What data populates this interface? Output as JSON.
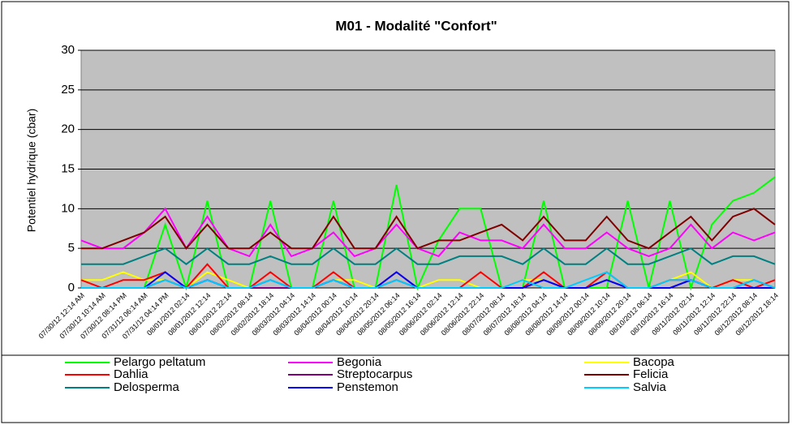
{
  "chart_data": {
    "type": "line",
    "title": "M01 - Modalité \"Confort\"",
    "y_label": "Potentiel hydrique (cbar)",
    "categories": [
      "07/30/12 12:14 AM",
      "07/30/12 10:14 AM",
      "07/30/12 08:14 PM",
      "07/31/12 06:14 AM",
      "07/31/12 04:14 PM",
      "08/01/2012 02:14",
      "08/01/2012 12:14",
      "08/01/2012 22:14",
      "08/02/2012 08:14",
      "08/02/2012 18:14",
      "08/03/2012 04:14",
      "08/03/2012 14:14",
      "08/04/2012 00:14",
      "08/04/2012 10:14",
      "08/04/2012 20:14",
      "08/05/2012 06:14",
      "08/05/2012 16:14",
      "08/06/2012 02:14",
      "08/06/2012 12:14",
      "08/06/2012 22:14",
      "08/07/2012 08:14",
      "08/07/2012 18:14",
      "08/08/2012 04:14",
      "08/08/2012 14:14",
      "08/09/2012 00:14",
      "08/09/2012 10:14",
      "08/09/2012 20:14",
      "08/10/2012 06:14",
      "08/10/2012 16:14",
      "08/11/2012 02:14",
      "08/11/2012 12:14",
      "08/11/2012 22:14",
      "08/12/2012 08:14",
      "08/12/2012 18:14"
    ],
    "series": [
      {
        "name": "Pelargo peltatum",
        "color": "#00ff00",
        "values": [
          0,
          0,
          0,
          0,
          8,
          0,
          11,
          0,
          0,
          11,
          0,
          0,
          11,
          0,
          0,
          13,
          0,
          6,
          10,
          10,
          0,
          0,
          11,
          0,
          0,
          0,
          11,
          0,
          11,
          0,
          8,
          11,
          12,
          14
        ]
      },
      {
        "name": "Begonia",
        "color": "#ff00ff",
        "values": [
          6,
          5,
          5,
          7,
          10,
          5,
          9,
          5,
          4,
          8,
          4,
          5,
          7,
          4,
          5,
          8,
          5,
          4,
          7,
          6,
          6,
          5,
          8,
          5,
          5,
          7,
          5,
          4,
          5,
          8,
          5,
          7,
          6,
          7
        ]
      },
      {
        "name": "Bacopa",
        "color": "#ffff00",
        "values": [
          1,
          1,
          2,
          1,
          1,
          0,
          2,
          1,
          0,
          1,
          0,
          0,
          1,
          1,
          0,
          2,
          0,
          1,
          1,
          0,
          0,
          1,
          1,
          0,
          0,
          1,
          0,
          0,
          1,
          2,
          0,
          1,
          1,
          0
        ]
      },
      {
        "name": "Dahlia",
        "color": "#ff0000",
        "values": [
          1,
          0,
          1,
          1,
          2,
          0,
          3,
          0,
          0,
          2,
          0,
          0,
          2,
          0,
          0,
          2,
          0,
          0,
          0,
          2,
          0,
          0,
          2,
          0,
          0,
          2,
          0,
          0,
          1,
          1,
          0,
          1,
          0,
          1
        ]
      },
      {
        "name": "Streptocarpus",
        "color": "#800080",
        "values": [
          0,
          0,
          0,
          0,
          1,
          0,
          1,
          0,
          0,
          0,
          0,
          0,
          1,
          0,
          0,
          1,
          0,
          0,
          0,
          0,
          0,
          0,
          1,
          0,
          0,
          1,
          0,
          0,
          0,
          1,
          0,
          0,
          1,
          0
        ]
      },
      {
        "name": "Felicia",
        "color": "#800000",
        "values": [
          5,
          5,
          6,
          7,
          9,
          5,
          8,
          5,
          5,
          7,
          5,
          5,
          9,
          5,
          5,
          9,
          5,
          6,
          6,
          7,
          8,
          6,
          9,
          6,
          6,
          9,
          6,
          5,
          7,
          9,
          6,
          9,
          10,
          8
        ]
      },
      {
        "name": "Delosperma",
        "color": "#008080",
        "values": [
          3,
          3,
          3,
          4,
          5,
          3,
          5,
          3,
          3,
          4,
          3,
          3,
          5,
          3,
          3,
          5,
          3,
          3,
          4,
          4,
          4,
          3,
          5,
          3,
          3,
          5,
          3,
          3,
          4,
          5,
          3,
          4,
          4,
          3
        ]
      },
      {
        "name": "Penstemon",
        "color": "#0000ff",
        "values": [
          0,
          0,
          0,
          0,
          2,
          0,
          1,
          0,
          0,
          1,
          0,
          0,
          1,
          0,
          0,
          2,
          0,
          0,
          0,
          0,
          0,
          0,
          1,
          0,
          0,
          1,
          0,
          0,
          0,
          1,
          0,
          0,
          0,
          0
        ]
      },
      {
        "name": "Salvia",
        "color": "#00ccff",
        "values": [
          0,
          0,
          0,
          0,
          1,
          0,
          1,
          0,
          0,
          1,
          0,
          0,
          1,
          0,
          0,
          1,
          0,
          0,
          0,
          0,
          0,
          1,
          0,
          0,
          1,
          2,
          0,
          0,
          1,
          1,
          0,
          0,
          1,
          0
        ]
      }
    ],
    "ylim": [
      0,
      30
    ],
    "yticks": [
      0,
      5,
      10,
      15,
      20,
      25,
      30
    ],
    "grid": true,
    "legend": "bottom"
  }
}
